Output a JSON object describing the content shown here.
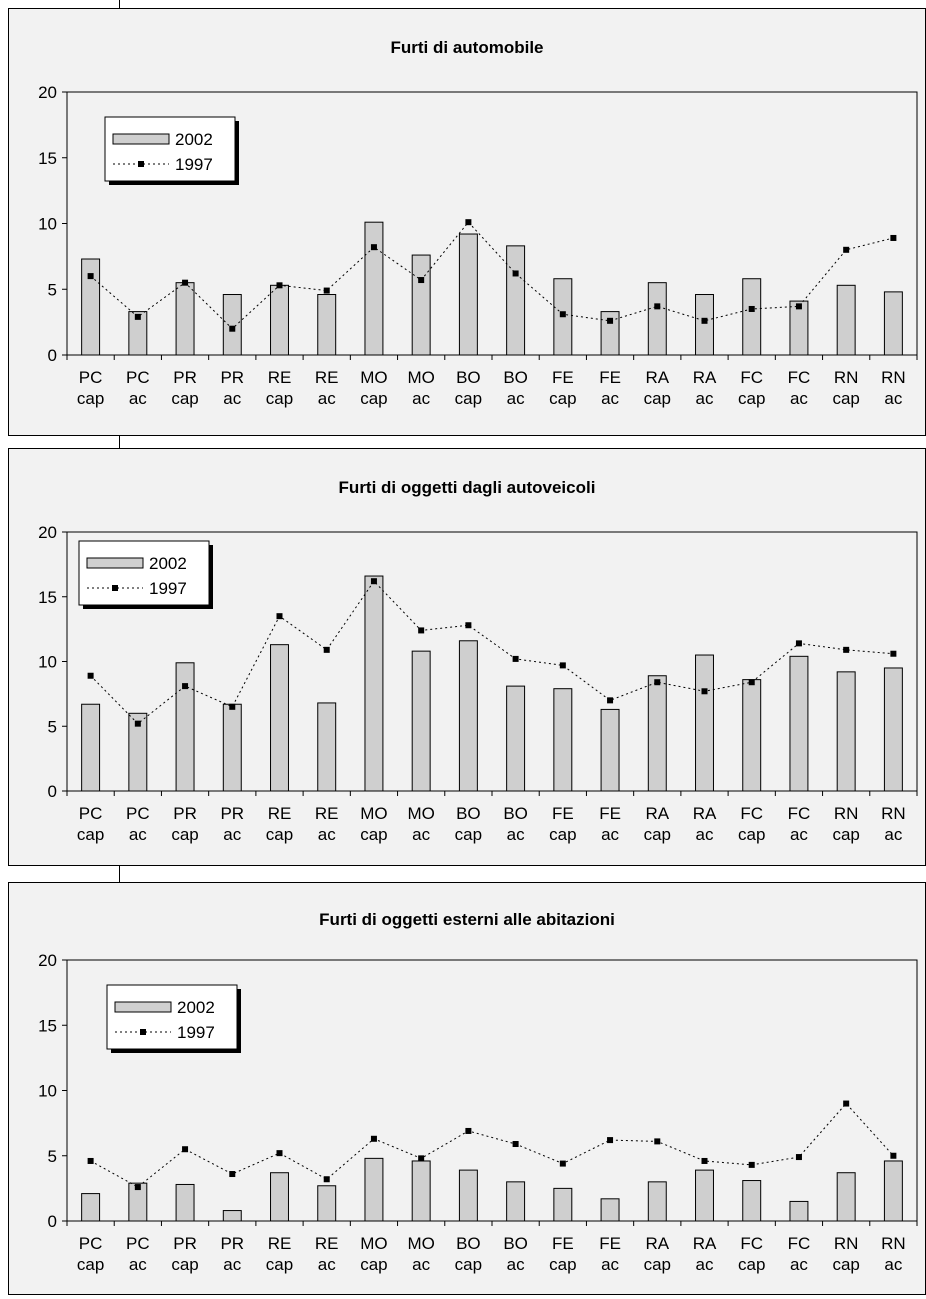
{
  "chart_data": [
    {
      "type": "bar",
      "title": "Furti di automobile",
      "categories": [
        "PC cap",
        "PC ac",
        "PR cap",
        "PR ac",
        "RE cap",
        "RE ac",
        "MO cap",
        "MO ac",
        "BO cap",
        "BO ac",
        "FE cap",
        "FE ac",
        "RA cap",
        "RA ac",
        "FC cap",
        "FC ac",
        "RN cap",
        "RN ac"
      ],
      "ylim": [
        0,
        20
      ],
      "yticks": [
        0,
        5,
        10,
        15,
        20
      ],
      "series": [
        {
          "name": "2002",
          "type": "bar",
          "values": [
            7.3,
            3.3,
            5.5,
            4.6,
            5.3,
            4.6,
            10.1,
            7.6,
            9.2,
            8.3,
            5.8,
            3.3,
            5.5,
            4.6,
            5.8,
            4.1,
            5.3,
            4.8
          ]
        },
        {
          "name": "1997",
          "type": "line",
          "values": [
            6.0,
            2.9,
            5.5,
            2.0,
            5.3,
            4.9,
            8.2,
            5.7,
            10.1,
            6.2,
            3.1,
            2.6,
            3.7,
            2.6,
            3.5,
            3.7,
            8.0,
            8.9
          ]
        }
      ]
    },
    {
      "type": "bar",
      "title": "Furti di oggetti dagli autoveicoli",
      "categories": [
        "PC cap",
        "PC ac",
        "PR cap",
        "PR ac",
        "RE cap",
        "RE ac",
        "MO cap",
        "MO ac",
        "BO cap",
        "BO ac",
        "FE cap",
        "FE ac",
        "RA cap",
        "RA ac",
        "FC cap",
        "FC ac",
        "RN cap",
        "RN ac"
      ],
      "ylim": [
        0,
        20
      ],
      "yticks": [
        0,
        5,
        10,
        15,
        20
      ],
      "series": [
        {
          "name": "2002",
          "type": "bar",
          "values": [
            6.7,
            6.0,
            9.9,
            6.7,
            11.3,
            6.8,
            16.6,
            10.8,
            11.6,
            8.1,
            7.9,
            6.3,
            8.9,
            10.5,
            8.6,
            10.4,
            9.2,
            9.5
          ]
        },
        {
          "name": "1997",
          "type": "line",
          "values": [
            8.9,
            5.2,
            8.1,
            6.5,
            13.5,
            10.9,
            16.2,
            12.4,
            12.8,
            10.2,
            9.7,
            7.0,
            8.4,
            7.7,
            8.4,
            11.4,
            10.9,
            10.6
          ]
        }
      ]
    },
    {
      "type": "bar",
      "title": "Furti di oggetti esterni alle abitazioni",
      "categories": [
        "PC cap",
        "PC ac",
        "PR cap",
        "PR ac",
        "RE cap",
        "RE ac",
        "MO cap",
        "MO ac",
        "BO cap",
        "BO ac",
        "FE cap",
        "FE ac",
        "RA cap",
        "RA ac",
        "FC cap",
        "FC ac",
        "RN cap",
        "RN ac"
      ],
      "ylim": [
        0,
        20
      ],
      "yticks": [
        0,
        5,
        10,
        15,
        20
      ],
      "series": [
        {
          "name": "2002",
          "type": "bar",
          "values": [
            2.1,
            2.9,
            2.8,
            0.8,
            3.7,
            2.7,
            4.8,
            4.6,
            3.9,
            3.0,
            2.5,
            1.7,
            3.0,
            3.9,
            3.1,
            1.5,
            3.7,
            4.6
          ]
        },
        {
          "name": "1997",
          "type": "line",
          "values": [
            4.6,
            2.6,
            5.5,
            3.6,
            5.2,
            3.2,
            6.3,
            4.8,
            6.9,
            5.9,
            4.4,
            6.2,
            6.1,
            4.6,
            4.3,
            4.9,
            9.0,
            5.0
          ]
        }
      ]
    }
  ],
  "colors": {
    "bar_fill": "#cfcfcf",
    "panel_bg": "#f2f2f2",
    "line": "#000000"
  }
}
